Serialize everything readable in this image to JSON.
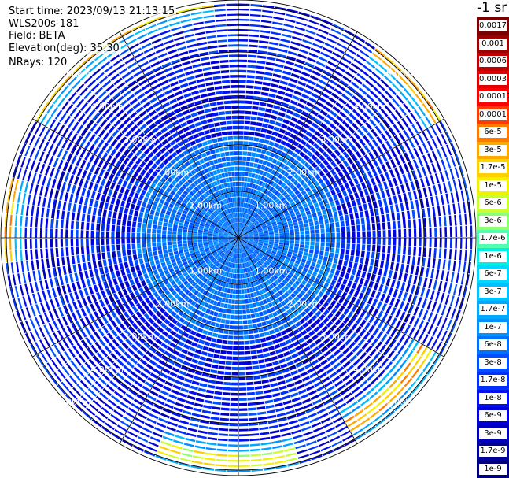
{
  "header": {
    "start_time": "Start time: 2023/09/13 21:13:15",
    "instrument": "WLS200s-181",
    "field": "Field: BETA",
    "elevation": "Elevation(deg): 35.30",
    "nrays": "NRays: 120"
  },
  "colorbar": {
    "unit_label": "-1 sr",
    "ticks": [
      "0.0017",
      "0.001",
      "0.0006",
      "0.0003",
      "0.00017",
      "0.0001",
      "6e-5",
      "3e-5",
      "1.7e-5",
      "1e-5",
      "6e-6",
      "3e-6",
      "1.7e-6",
      "1e-6",
      "6e-7",
      "3e-7",
      "1.7e-7",
      "1e-7",
      "6e-8",
      "3e-8",
      "1.7e-8",
      "1e-8",
      "6e-9",
      "3e-9",
      "1.7e-9",
      "1e-9"
    ],
    "colors": [
      "#7a0000",
      "#9c0000",
      "#c00000",
      "#e00000",
      "#ff0000",
      "#ff3c00",
      "#ff7800",
      "#ffa800",
      "#ffd000",
      "#f2f200",
      "#c8ff30",
      "#90ff70",
      "#50ffb0",
      "#00f0e8",
      "#00d8ff",
      "#00c0ff",
      "#00a8ff",
      "#0090ff",
      "#0070ff",
      "#0050ff",
      "#0030ff",
      "#0010f0",
      "#0000d8",
      "#0000b8",
      "#00009a",
      "#00007a"
    ]
  },
  "chart_data": {
    "type": "heatmap",
    "projection": "polar PPI scan",
    "field": "BETA",
    "n_rays": 120,
    "elevation_deg": 35.3,
    "range_rings_km": [
      1.0,
      2.0,
      3.0,
      4.0,
      5.0
    ],
    "range_ring_labels": [
      "1.00km",
      "2.00km",
      "3.00km",
      "4.00km",
      "5.00km"
    ],
    "spokes_deg": [
      0,
      30,
      60,
      90,
      120,
      150,
      180,
      210,
      240,
      270,
      300,
      330
    ],
    "color_scale": "log",
    "value_range": [
      1e-09,
      0.0017
    ],
    "dominant_level": "1e-8",
    "high_backscatter_arcs": [
      {
        "azimuth_range_deg": [
          300,
          355
        ],
        "range_km": 5.1,
        "level": "3e-5"
      },
      {
        "azimuth_range_deg": [
          0,
          10
        ],
        "range_km": 5.6,
        "level": "1.7e-5"
      },
      {
        "azimuth_range_deg": [
          35,
          60
        ],
        "range_km": 5.0,
        "level": "6e-5"
      },
      {
        "azimuth_range_deg": [
          265,
          285
        ],
        "range_km": 5.0,
        "level": "6e-5"
      },
      {
        "azimuth_range_deg": [
          120,
          150
        ],
        "range_km": 4.7,
        "level": "6e-5"
      },
      {
        "azimuth_range_deg": [
          165,
          200
        ],
        "range_km": 4.8,
        "level": "1.7e-5"
      }
    ]
  }
}
